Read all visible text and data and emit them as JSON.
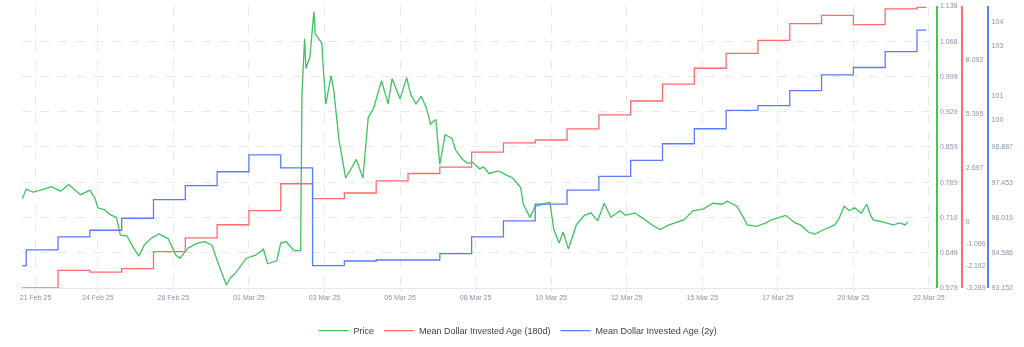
{
  "chart_data": {
    "type": "line",
    "grid": true,
    "legend": "bottom",
    "marker": "none",
    "line_style": "solid",
    "xlim": [
      "--02-21T21:48",
      "--03-22T15:48"
    ],
    "xticks": [
      {
        "value": "--02-22T08:00",
        "label": "21 Feb 25"
      },
      {
        "value": "--02-24T07:00",
        "label": "24 Feb 25"
      },
      {
        "value": "--02-26T16:00",
        "label": "26 Feb 25"
      },
      {
        "value": "--03-01T01:00",
        "label": "01 Mar 25"
      },
      {
        "value": "--03-03T10:00",
        "label": "03 Mar 25"
      },
      {
        "value": "--03-05T19:00",
        "label": "05 Mar 25"
      },
      {
        "value": "--03-08T04:00",
        "label": "08 Mar 25"
      },
      {
        "value": "--03-10T13:00",
        "label": "10 Mar 25"
      },
      {
        "value": "--03-12T22:00",
        "label": "12 Mar 25"
      },
      {
        "value": "--03-15T07:00",
        "label": "15 Mar 25"
      },
      {
        "value": "--03-17T16:00",
        "label": "17 Mar 25"
      },
      {
        "value": "--03-20T01:00",
        "label": "20 Mar 25"
      },
      {
        "value": "--03-22T10:00",
        "label": "22 Mar 25"
      }
    ],
    "ylim": [
      0.579,
      1.138
    ],
    "yticks": [
      0.579,
      0.649,
      0.719,
      0.789,
      0.859,
      0.929,
      0.999,
      1.068,
      1.138
    ],
    "y2lim": [
      -3.289,
      10.75
    ],
    "y2ticks": [
      -3.289,
      -2.192,
      -1.096,
      0,
      2.697,
      5.395,
      8.092
    ],
    "y3lim": [
      93.152,
      104.622
    ],
    "y3ticks": [
      93.152,
      94.586,
      96.019,
      97.453,
      98.887,
      100,
      101,
      103,
      104
    ],
    "series": [
      {
        "name": "Price",
        "axis": "y",
        "color": "#3cc55c",
        "x": [
          "--02-21T22:00",
          "--02-22T01:00",
          "--02-22T06:00",
          "--02-22T12:00",
          "--02-22T20:00",
          "--02-23T03:00",
          "--02-23T09:00",
          "--02-23T14:00",
          "--02-23T18:00",
          "--02-24T01:00",
          "--02-24T05:00",
          "--02-24T07:00",
          "--02-24T12:00",
          "--02-24T16:00",
          "--02-24T21:00",
          "--02-25T00:00",
          "--02-25T05:00",
          "--02-25T10:00",
          "--02-25T14:00",
          "--02-25T18:00",
          "--02-25T23:00",
          "--02-26T05:00",
          "--02-26T12:00",
          "--02-26T18:00",
          "--02-26T21:00",
          "--02-27T03:00",
          "--02-27T10:00",
          "--02-27T16:00",
          "--02-27T21:00",
          "--02-28T01:00",
          "--02-28T04:00",
          "--02-28T08:00",
          "--02-28T11:00",
          "--02-28T15:00",
          "--02-28T23:00",
          "--03-01T06:00",
          "--03-01T12:00",
          "--03-01T15:00",
          "--03-01T22:00",
          "--03-02T01:00",
          "--03-02T05:00",
          "--03-02T11:00",
          "--03-02T16:00",
          "--03-02T17:00",
          "--03-02T19:00",
          "--03-02T20:00",
          "--03-02T23:00",
          "--03-03T02:00",
          "--03-03T03:00",
          "--03-03T08:00",
          "--03-03T09:00",
          "--03-03T11:00",
          "--03-03T15:00",
          "--03-03T17:00",
          "--03-03T21:00",
          "--03-04T02:00",
          "--03-04T06:00",
          "--03-04T10:00",
          "--03-04T15:00",
          "--03-04T19:00",
          "--03-04T23:00",
          "--03-05T05:00",
          "--03-05T10:00",
          "--03-05T13:00",
          "--03-05T19:00",
          "--03-06T00:00",
          "--03-06T03:00",
          "--03-06T07:00",
          "--03-06T11:00",
          "--03-06T15:00",
          "--03-06T18:00",
          "--03-06T22:00",
          "--03-07T01:00",
          "--03-07T05:00",
          "--03-07T10:00",
          "--03-07T13:00",
          "--03-07T18:00",
          "--03-07T22:00",
          "--03-08T02:00",
          "--03-08T07:00",
          "--03-08T10:00",
          "--03-08T14:00",
          "--03-08T21:00",
          "--03-09T08:00",
          "--03-09T14:00",
          "--03-09T16:00",
          "--03-09T21:00",
          "--03-10T01:00",
          "--03-10T06:00",
          "--03-10T12:00",
          "--03-10T15:00",
          "--03-10T19:00",
          "--03-10T22:00",
          "--03-11T02:00",
          "--03-11T08:00",
          "--03-11T14:00",
          "--03-11T19:00",
          "--03-12T00:00",
          "--03-12T05:00",
          "--03-12T10:00",
          "--03-12T17:00",
          "--03-12T21:00",
          "--03-13T04:00",
          "--03-13T12:00",
          "--03-13T17:00",
          "--03-13T23:00",
          "--03-14T06:00",
          "--03-14T17:00",
          "--03-15T00:00",
          "--03-15T08:00",
          "--03-15T15:00",
          "--03-15T22:00",
          "--03-16T02:00",
          "--03-16T09:00",
          "--03-16T14:00",
          "--03-16T17:00",
          "--03-17T00:00",
          "--03-17T07:00",
          "--03-17T11:00",
          "--03-17T22:00",
          "--03-18T05:00",
          "--03-18T09:00",
          "--03-18T15:00",
          "--03-18T20:00",
          "--03-19T03:00",
          "--03-19T11:00",
          "--03-19T14:00",
          "--03-19T18:00",
          "--03-19T22:00",
          "--03-20T02:00",
          "--03-20T07:00",
          "--03-20T11:00",
          "--03-20T14:00",
          "--03-20T16:00",
          "--03-20T23:00",
          "--03-21T07:00",
          "--03-21T12:00",
          "--03-21T16:00",
          "--03-21T18:00"
        ],
        "values": [
          0.756,
          0.775,
          0.769,
          0.773,
          0.78,
          0.771,
          0.784,
          0.773,
          0.764,
          0.773,
          0.756,
          0.738,
          0.734,
          0.725,
          0.719,
          0.684,
          0.682,
          0.658,
          0.642,
          0.664,
          0.677,
          0.686,
          0.677,
          0.644,
          0.638,
          0.658,
          0.668,
          0.671,
          0.664,
          0.634,
          0.612,
          0.585,
          0.599,
          0.609,
          0.638,
          0.644,
          0.656,
          0.627,
          0.633,
          0.668,
          0.671,
          0.653,
          0.653,
          0.963,
          1.073,
          1.014,
          1.037,
          1.127,
          1.083,
          1.064,
          1.018,
          0.944,
          1.0,
          0.97,
          0.871,
          0.797,
          0.815,
          0.834,
          0.797,
          0.917,
          0.935,
          0.99,
          0.944,
          0.994,
          0.954,
          0.996,
          0.963,
          0.944,
          0.959,
          0.935,
          0.904,
          0.913,
          0.824,
          0.883,
          0.876,
          0.852,
          0.834,
          0.826,
          0.828,
          0.815,
          0.819,
          0.806,
          0.811,
          0.797,
          0.778,
          0.745,
          0.719,
          0.741,
          0.745,
          0.749,
          0.695,
          0.668,
          0.69,
          0.656,
          0.704,
          0.723,
          0.728,
          0.712,
          0.747,
          0.719,
          0.732,
          0.723,
          0.728,
          0.714,
          0.704,
          0.695,
          0.704,
          0.714,
          0.732,
          0.736,
          0.747,
          0.745,
          0.751,
          0.741,
          0.719,
          0.704,
          0.701,
          0.708,
          0.714,
          0.723,
          0.708,
          0.704,
          0.69,
          0.686,
          0.695,
          0.704,
          0.716,
          0.741,
          0.732,
          0.738,
          0.727,
          0.745,
          0.723,
          0.714,
          0.71,
          0.704,
          0.708,
          0.704,
          0.71
        ]
      },
      {
        "name": "Mean Dollar Invested Age (180d)",
        "type": "step",
        "axis": "y2",
        "color": "#ff6b6b",
        "x": [
          "--02-21T22:00",
          "--02-23T01:00",
          "--02-24T01:00",
          "--02-25T01:00",
          "--02-26T01:00",
          "--02-27T01:00",
          "--02-28T01:00",
          "--03-01T01:00",
          "--03-02T01:00",
          "--03-03T01:00",
          "--03-04T01:00",
          "--03-05T01:00",
          "--03-06T01:00",
          "--03-07T01:00",
          "--03-08T01:00",
          "--03-09T01:00",
          "--03-10T01:00",
          "--03-11T01:00",
          "--03-12T01:00",
          "--03-13T01:00",
          "--03-14T01:00",
          "--03-15T01:00",
          "--03-16T01:00",
          "--03-17T01:00",
          "--03-18T01:00",
          "--03-19T01:00",
          "--03-20T01:00",
          "--03-21T01:00",
          "--03-22T01:00",
          "--03-22T08:00"
        ],
        "values": [
          -3.289,
          -2.41,
          -2.5,
          -2.32,
          -1.48,
          -0.79,
          -0.14,
          0.56,
          1.9,
          1.16,
          1.44,
          2.04,
          2.41,
          2.73,
          3.48,
          3.94,
          4.08,
          4.63,
          5.33,
          6.02,
          6.86,
          7.65,
          8.39,
          9.04,
          9.87,
          10.28,
          9.82,
          10.61,
          10.68,
          10.68
        ]
      },
      {
        "name": "Mean Dollar Invested Age (2y)",
        "type": "step",
        "axis": "y3",
        "color": "#5b7cfa",
        "x": [
          "--02-21T22:00",
          "--02-22T01:00",
          "--02-23T01:00",
          "--02-24T01:00",
          "--02-25T01:00",
          "--02-26T01:00",
          "--02-27T01:00",
          "--02-28T01:00",
          "--03-01T01:00",
          "--03-02T01:00",
          "--03-03T01:00",
          "--03-04T01:00",
          "--03-05T01:00",
          "--03-06T01:00",
          "--03-07T01:00",
          "--03-08T01:00",
          "--03-09T01:00",
          "--03-10T01:00",
          "--03-11T01:00",
          "--03-12T01:00",
          "--03-13T01:00",
          "--03-14T01:00",
          "--03-15T01:00",
          "--03-16T01:00",
          "--03-17T01:00",
          "--03-18T01:00",
          "--03-19T01:00",
          "--03-20T01:00",
          "--03-21T01:00",
          "--03-22T01:00",
          "--03-22T08:00"
        ],
        "values": [
          94.06,
          94.7,
          95.23,
          95.5,
          95.99,
          96.75,
          97.32,
          97.88,
          98.57,
          98.04,
          94.06,
          94.25,
          94.29,
          94.29,
          94.55,
          95.23,
          95.88,
          96.56,
          97.13,
          97.69,
          98.34,
          99.02,
          99.63,
          100.38,
          100.57,
          101.18,
          101.82,
          102.12,
          102.77,
          103.64,
          103.64
        ]
      }
    ]
  }
}
